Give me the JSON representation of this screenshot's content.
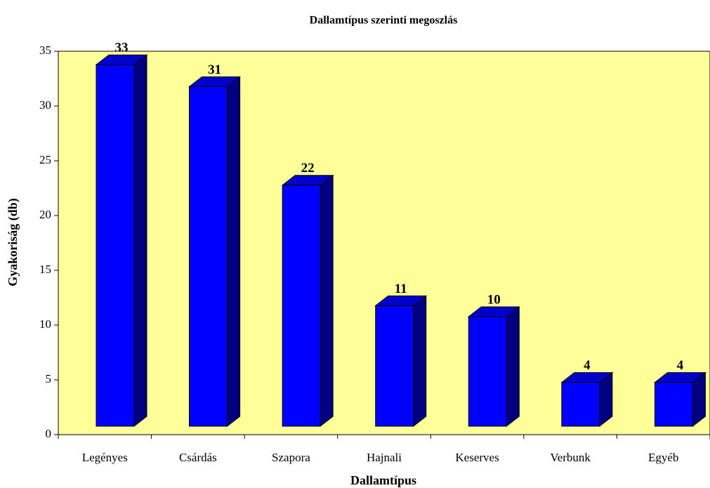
{
  "chart_data": {
    "type": "bar3d",
    "title": "Dallamtípus szerinti megoszlás",
    "x_label": "Dallamtípus",
    "y_label": "Gyakoriság (db)",
    "categories": [
      "Legényes",
      "Csárdás",
      "Szapora",
      "Hajnali",
      "Keserves",
      "Verbunk",
      "Egyéb"
    ],
    "values": [
      33,
      31,
      22,
      11,
      10,
      4,
      4
    ],
    "color": "#0000ff",
    "top_color": "#0000cc",
    "side_color": "#000080",
    "background": "#ffff99",
    "ylim": [
      0,
      35
    ],
    "yticks": [
      0,
      5,
      10,
      15,
      20,
      25,
      30,
      35
    ]
  }
}
